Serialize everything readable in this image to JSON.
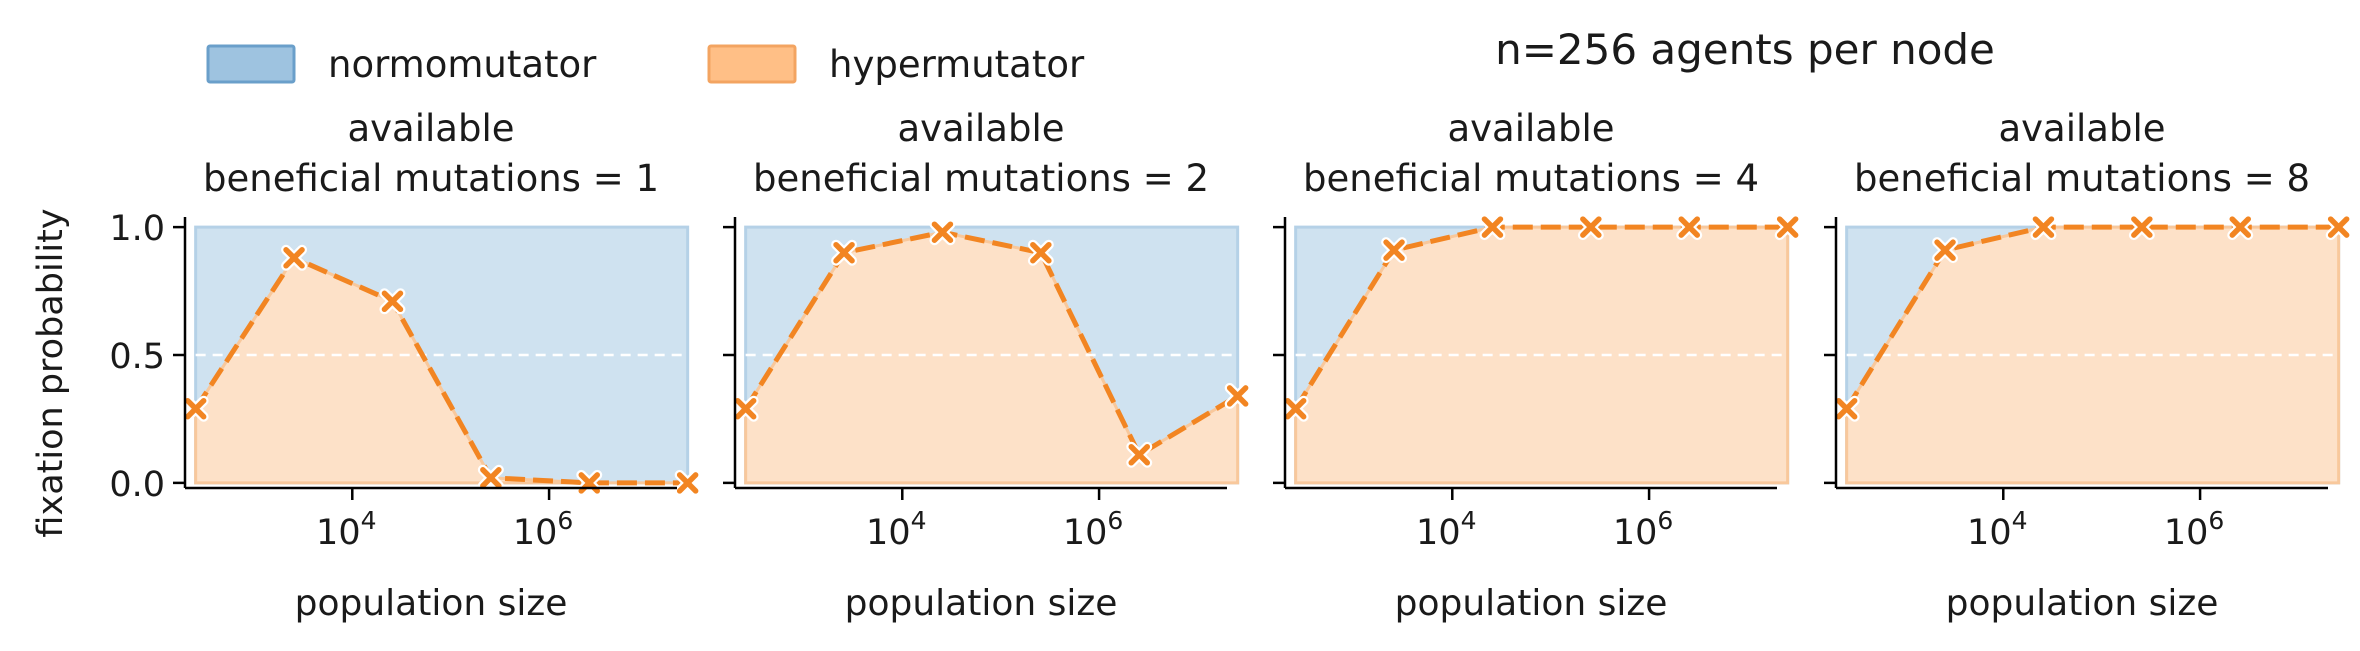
{
  "suptitle": "n=256 agents per node",
  "legend": [
    {
      "label": "normomutator",
      "color": "#9ec3e0",
      "edge": "#6a9fca"
    },
    {
      "label": "hypermutator",
      "color": "#ffbf86",
      "edge": "#f3a461"
    }
  ],
  "colors": {
    "normo_fill": "#cfe2f0",
    "normo_edge": "#b5d1e7",
    "hyper_fill": "#fde1c8",
    "hyper_edge": "#f8c89c",
    "line": "#f28522",
    "midline": "#ffffff"
  },
  "chart_data": [
    {
      "type": "area",
      "title": "available\nbeneficial mutations = 1",
      "title_lines": [
        "available",
        "beneficial mutations = 1"
      ],
      "xlabel": "population size",
      "ylabel": "fixation probability",
      "xscale": "log",
      "xlim_log10": [
        2.3,
        7.3
      ],
      "ylim": [
        -0.02,
        1.02
      ],
      "yticks": [
        0.0,
        0.5,
        1.0
      ],
      "yticklabels": [
        "0.0",
        "0.5",
        "1.0"
      ],
      "xtick_labels": [
        "10^4",
        "10^6"
      ],
      "x": [
        256,
        2560,
        25600,
        256000,
        2560000,
        25600000
      ],
      "series": [
        {
          "name": "hypermutator",
          "values": [
            0.29,
            0.88,
            0.71,
            0.02,
            0.0,
            0.0
          ]
        }
      ]
    },
    {
      "type": "area",
      "title": "available\nbeneficial mutations = 2",
      "title_lines": [
        "available",
        "beneficial mutations = 2"
      ],
      "xlabel": "population size",
      "ylabel": "",
      "xscale": "log",
      "xlim_log10": [
        2.3,
        7.3
      ],
      "ylim": [
        -0.02,
        1.02
      ],
      "yticks": [
        0.0,
        0.5,
        1.0
      ],
      "yticklabels": [
        "",
        "",
        ""
      ],
      "xtick_labels": [
        "10^4",
        "10^6"
      ],
      "x": [
        256,
        2560,
        25600,
        256000,
        2560000,
        25600000
      ],
      "series": [
        {
          "name": "hypermutator",
          "values": [
            0.29,
            0.9,
            0.98,
            0.9,
            0.11,
            0.34
          ]
        }
      ]
    },
    {
      "type": "area",
      "title": "available\nbeneficial mutations = 4",
      "title_lines": [
        "available",
        "beneficial mutations = 4"
      ],
      "xlabel": "population size",
      "ylabel": "",
      "xscale": "log",
      "xlim_log10": [
        2.3,
        7.3
      ],
      "ylim": [
        -0.02,
        1.02
      ],
      "yticks": [
        0.0,
        0.5,
        1.0
      ],
      "yticklabels": [
        "",
        "",
        ""
      ],
      "xtick_labels": [
        "10^4",
        "10^6"
      ],
      "x": [
        256,
        2560,
        25600,
        256000,
        2560000,
        25600000
      ],
      "series": [
        {
          "name": "hypermutator",
          "values": [
            0.29,
            0.91,
            1.0,
            1.0,
            1.0,
            1.0
          ]
        }
      ]
    },
    {
      "type": "area",
      "title": "available\nbeneficial mutations = 8",
      "title_lines": [
        "available",
        "beneficial mutations = 8"
      ],
      "xlabel": "population size",
      "ylabel": "",
      "xscale": "log",
      "xlim_log10": [
        2.3,
        7.3
      ],
      "ylim": [
        -0.02,
        1.02
      ],
      "yticks": [
        0.0,
        0.5,
        1.0
      ],
      "yticklabels": [
        "",
        "",
        ""
      ],
      "xtick_labels": [
        "10^4",
        "10^6"
      ],
      "x": [
        256,
        2560,
        25600,
        256000,
        2560000,
        25600000
      ],
      "series": [
        {
          "name": "hypermutator",
          "values": [
            0.29,
            0.91,
            1.0,
            1.0,
            1.0,
            1.0
          ]
        }
      ]
    }
  ]
}
